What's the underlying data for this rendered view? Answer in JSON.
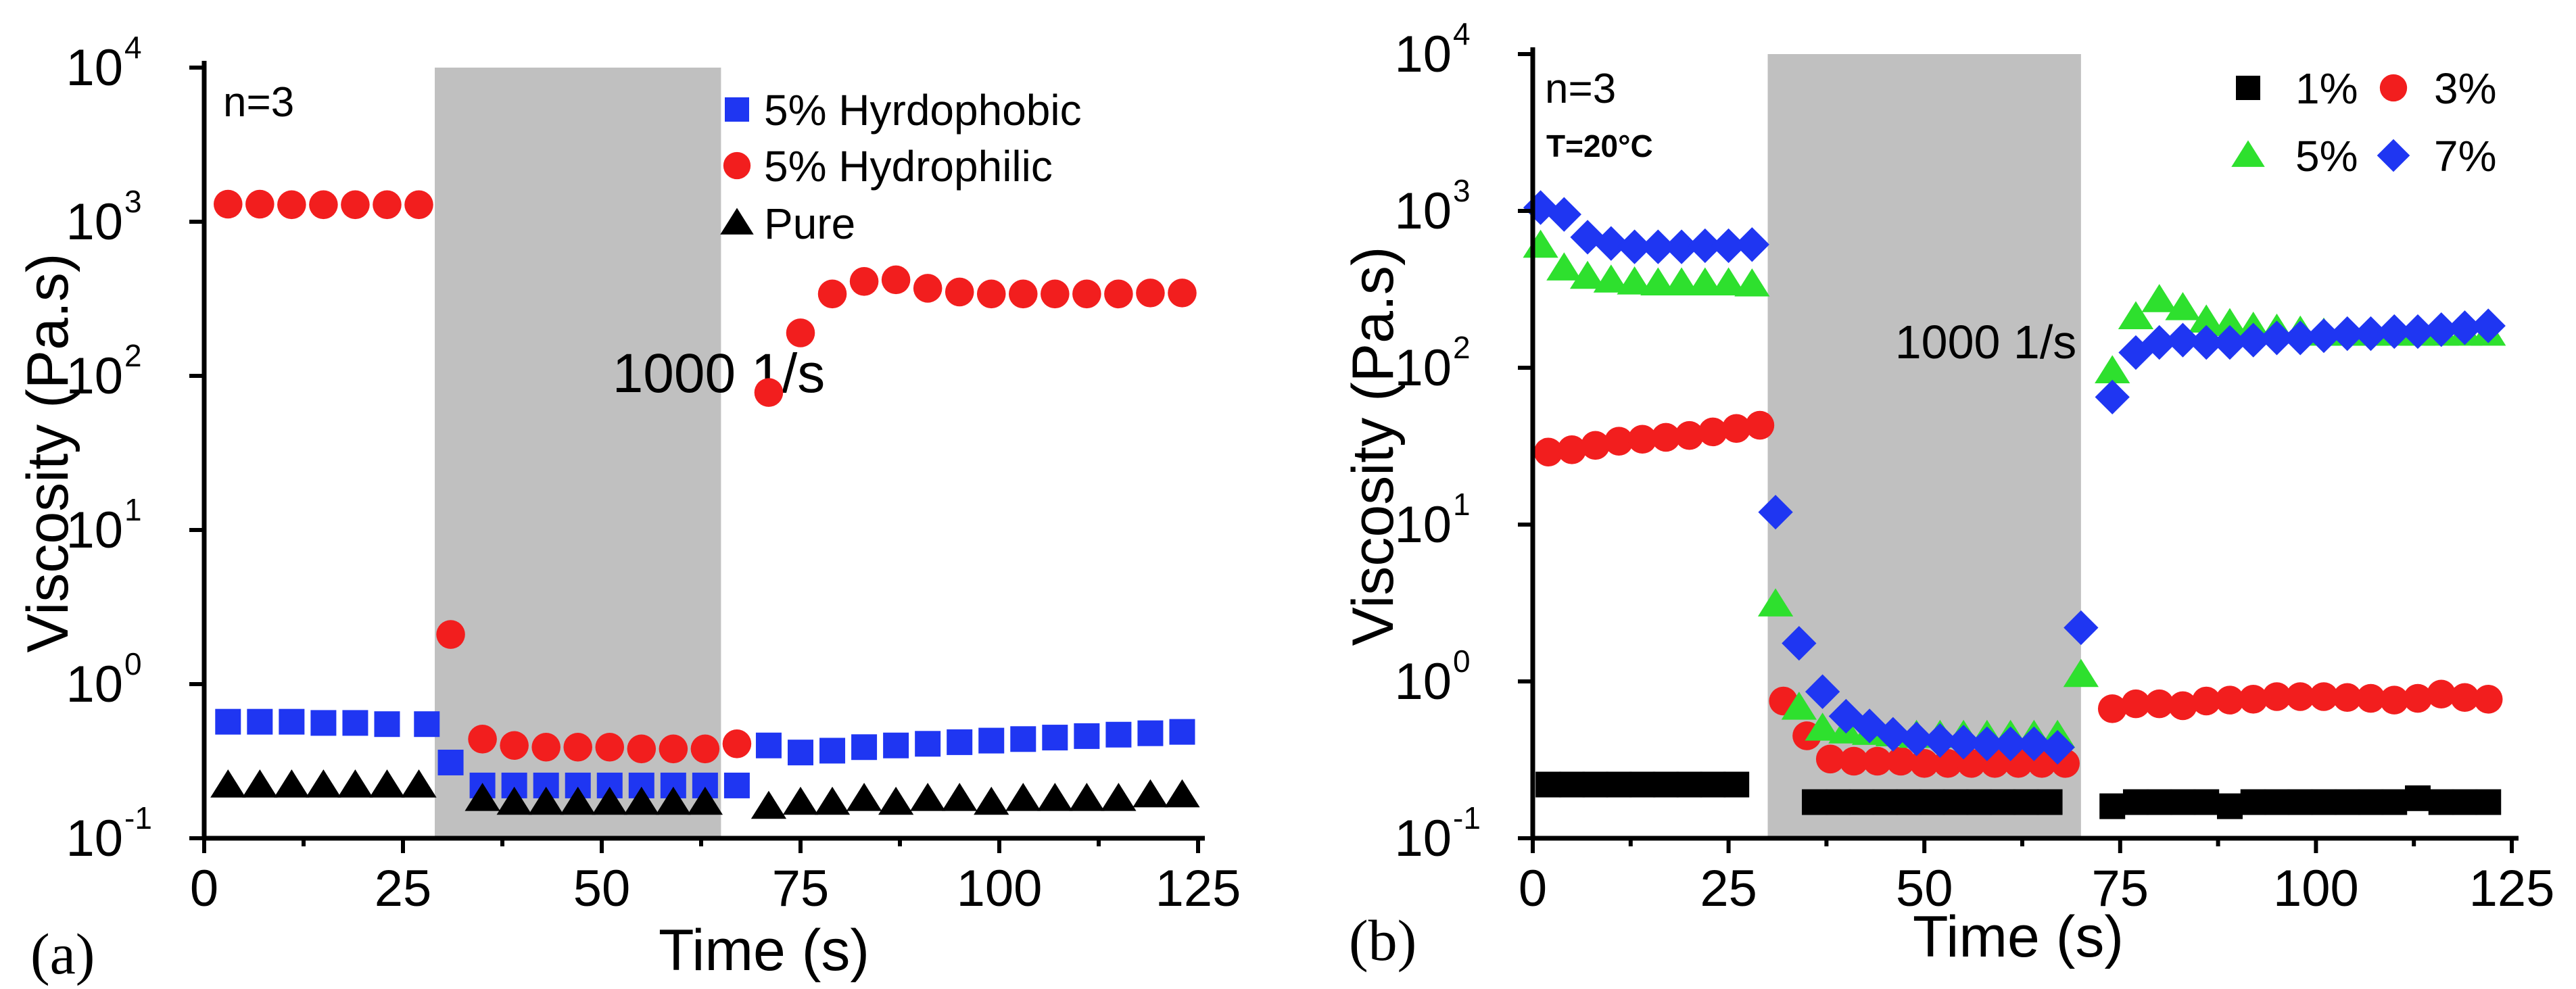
{
  "chart_data": [
    {
      "id": "a",
      "type": "scatter",
      "panel_label": "(a)",
      "xlabel": "Time (s)",
      "ylabel": "Viscosity (Pa.s)",
      "xlim": [
        0,
        125
      ],
      "ylim_log10": [
        -1,
        4
      ],
      "xticks": [
        0,
        25,
        50,
        75,
        100,
        125
      ],
      "xtick_labels": [
        "0",
        "25",
        "50",
        "75",
        "100",
        "125"
      ],
      "yticks": [
        {
          "base": "10",
          "exp": "-1"
        },
        {
          "base": "10",
          "exp": "0"
        },
        {
          "base": "10",
          "exp": "1"
        },
        {
          "base": "10",
          "exp": "2"
        },
        {
          "base": "10",
          "exp": "3"
        },
        {
          "base": "10",
          "exp": "4"
        }
      ],
      "annotation": "n=3",
      "shaded_region": {
        "x": [
          29,
          65
        ],
        "label": "1000 1/s",
        "color": "#c0c0c0"
      },
      "legend_position": "top-right",
      "series": [
        {
          "name": "5% Hyrdophobic",
          "marker": "square",
          "color": "#1f36f2",
          "x": [
            3,
            7,
            11,
            15,
            19,
            23,
            28,
            31,
            35,
            39,
            43,
            47,
            51,
            55,
            59,
            63,
            67,
            71,
            75,
            79,
            83,
            87,
            91,
            95,
            99,
            103,
            107,
            111,
            115,
            119,
            123
          ],
          "y": [
            0.57,
            0.57,
            0.57,
            0.56,
            0.56,
            0.55,
            0.55,
            0.31,
            0.22,
            0.22,
            0.22,
            0.22,
            0.22,
            0.22,
            0.22,
            0.22,
            0.22,
            0.4,
            0.36,
            0.37,
            0.39,
            0.4,
            0.41,
            0.42,
            0.43,
            0.44,
            0.45,
            0.46,
            0.47,
            0.48,
            0.49
          ]
        },
        {
          "name": "5% Hydrophilic",
          "marker": "circle",
          "color": "#f21e1e",
          "x": [
            3,
            7,
            11,
            15,
            19,
            23,
            27,
            31,
            35,
            39,
            43,
            47,
            51,
            55,
            59,
            63,
            67,
            71,
            75,
            79,
            83,
            87,
            91,
            95,
            99,
            103,
            107,
            111,
            115,
            119,
            123
          ],
          "y": [
            1300,
            1300,
            1290,
            1290,
            1290,
            1290,
            1290,
            2.1,
            0.44,
            0.4,
            0.39,
            0.39,
            0.39,
            0.38,
            0.38,
            0.38,
            0.41,
            78,
            190,
            340,
            410,
            420,
            370,
            350,
            340,
            340,
            340,
            340,
            340,
            345,
            345
          ]
        },
        {
          "name": "Pure",
          "marker": "triangle",
          "color": "#000000",
          "x": [
            3,
            7,
            11,
            15,
            19,
            23,
            27,
            35,
            39,
            43,
            47,
            51,
            55,
            59,
            63,
            71,
            75,
            79,
            83,
            87,
            91,
            95,
            99,
            103,
            107,
            111,
            115,
            119,
            123
          ],
          "y": [
            0.22,
            0.22,
            0.22,
            0.22,
            0.22,
            0.22,
            0.22,
            0.18,
            0.17,
            0.17,
            0.17,
            0.17,
            0.17,
            0.17,
            0.17,
            0.16,
            0.17,
            0.17,
            0.18,
            0.17,
            0.18,
            0.18,
            0.17,
            0.18,
            0.18,
            0.18,
            0.18,
            0.19,
            0.19
          ]
        }
      ]
    },
    {
      "id": "b",
      "type": "scatter",
      "panel_label": "(b)",
      "xlabel": "Time (s)",
      "ylabel": "Viscosity (Pa.s)",
      "xlim": [
        0,
        125
      ],
      "ylim_log10": [
        -1,
        4
      ],
      "xticks": [
        0,
        25,
        50,
        75,
        100,
        125
      ],
      "xtick_labels": [
        "0",
        "25",
        "50",
        "75",
        "100",
        "125"
      ],
      "yticks": [
        {
          "base": "10",
          "exp": "-1"
        },
        {
          "base": "10",
          "exp": "0"
        },
        {
          "base": "10",
          "exp": "1"
        },
        {
          "base": "10",
          "exp": "2"
        },
        {
          "base": "10",
          "exp": "3"
        },
        {
          "base": "10",
          "exp": "4"
        }
      ],
      "annotation": "n=3",
      "annotation_2": "T=20°C",
      "shaded_region": {
        "x": [
          30,
          70
        ],
        "label": "1000 1/s",
        "color": "#c0c0c0"
      },
      "legend_position": "top-right",
      "series": [
        {
          "name": "1%",
          "marker": "square",
          "color": "#000000",
          "x": [
            2,
            5,
            8,
            11,
            14,
            17,
            20,
            23,
            26,
            36,
            39,
            42,
            45,
            48,
            51,
            54,
            57,
            60,
            63,
            66,
            74,
            77,
            80,
            83,
            86,
            89,
            92,
            95,
            98,
            101,
            104,
            107,
            110,
            113,
            116,
            119,
            122
          ],
          "y": [
            0.22,
            0.22,
            0.22,
            0.22,
            0.22,
            0.22,
            0.22,
            0.22,
            0.22,
            0.17,
            0.17,
            0.17,
            0.17,
            0.17,
            0.17,
            0.17,
            0.17,
            0.17,
            0.17,
            0.17,
            0.16,
            0.17,
            0.17,
            0.17,
            0.17,
            0.16,
            0.17,
            0.17,
            0.17,
            0.17,
            0.17,
            0.17,
            0.17,
            0.18,
            0.17,
            0.17,
            0.17
          ]
        },
        {
          "name": "3%",
          "marker": "circle",
          "color": "#f21e1e",
          "x": [
            2,
            5,
            8,
            11,
            14,
            17,
            20,
            23,
            26,
            29,
            32,
            35,
            38,
            41,
            44,
            47,
            50,
            53,
            56,
            59,
            62,
            65,
            68,
            74,
            77,
            80,
            83,
            86,
            89,
            92,
            95,
            98,
            101,
            104,
            107,
            110,
            113,
            116,
            119,
            122
          ],
          "y": [
            29,
            30,
            32,
            34,
            35,
            36,
            37,
            39,
            41,
            43,
            0.75,
            0.45,
            0.32,
            0.31,
            0.31,
            0.31,
            0.3,
            0.3,
            0.3,
            0.3,
            0.3,
            0.3,
            0.3,
            0.67,
            0.72,
            0.72,
            0.7,
            0.75,
            0.76,
            0.77,
            0.8,
            0.8,
            0.8,
            0.79,
            0.78,
            0.76,
            0.78,
            0.83,
            0.79,
            0.77
          ]
        },
        {
          "name": "5%",
          "marker": "triangle",
          "color": "#2ee02e",
          "x": [
            1,
            4,
            7,
            10,
            13,
            16,
            19,
            22,
            25,
            28,
            31,
            34,
            37,
            40,
            43,
            46,
            49,
            52,
            55,
            58,
            61,
            64,
            67,
            70,
            74,
            77,
            80,
            83,
            86,
            89,
            92,
            95,
            98,
            101,
            104,
            107,
            110,
            113,
            116,
            119,
            122
          ],
          "y": [
            600,
            430,
            380,
            360,
            350,
            345,
            345,
            345,
            345,
            340,
            3.1,
            0.68,
            0.5,
            0.48,
            0.47,
            0.46,
            0.45,
            0.45,
            0.45,
            0.45,
            0.45,
            0.45,
            0.45,
            1.1,
            95,
            210,
            270,
            240,
            200,
            190,
            180,
            175,
            170,
            165,
            165,
            165,
            165,
            165,
            165,
            165,
            165
          ]
        },
        {
          "name": "7%",
          "marker": "diamond",
          "color": "#1f36f2",
          "x": [
            1,
            4,
            7,
            10,
            13,
            16,
            19,
            22,
            25,
            28,
            31,
            34,
            37,
            40,
            43,
            46,
            49,
            52,
            55,
            58,
            61,
            64,
            67,
            70,
            74,
            77,
            80,
            83,
            86,
            89,
            92,
            95,
            98,
            101,
            104,
            107,
            110,
            113,
            116,
            119,
            122
          ],
          "y": [
            1050,
            950,
            680,
            620,
            590,
            590,
            590,
            600,
            600,
            610,
            12,
            1.75,
            0.86,
            0.6,
            0.52,
            0.46,
            0.43,
            0.42,
            0.41,
            0.4,
            0.4,
            0.4,
            0.38,
            2.2,
            65,
            125,
            145,
            150,
            145,
            145,
            150,
            155,
            155,
            160,
            165,
            165,
            170,
            170,
            175,
            180,
            185
          ]
        }
      ]
    }
  ]
}
